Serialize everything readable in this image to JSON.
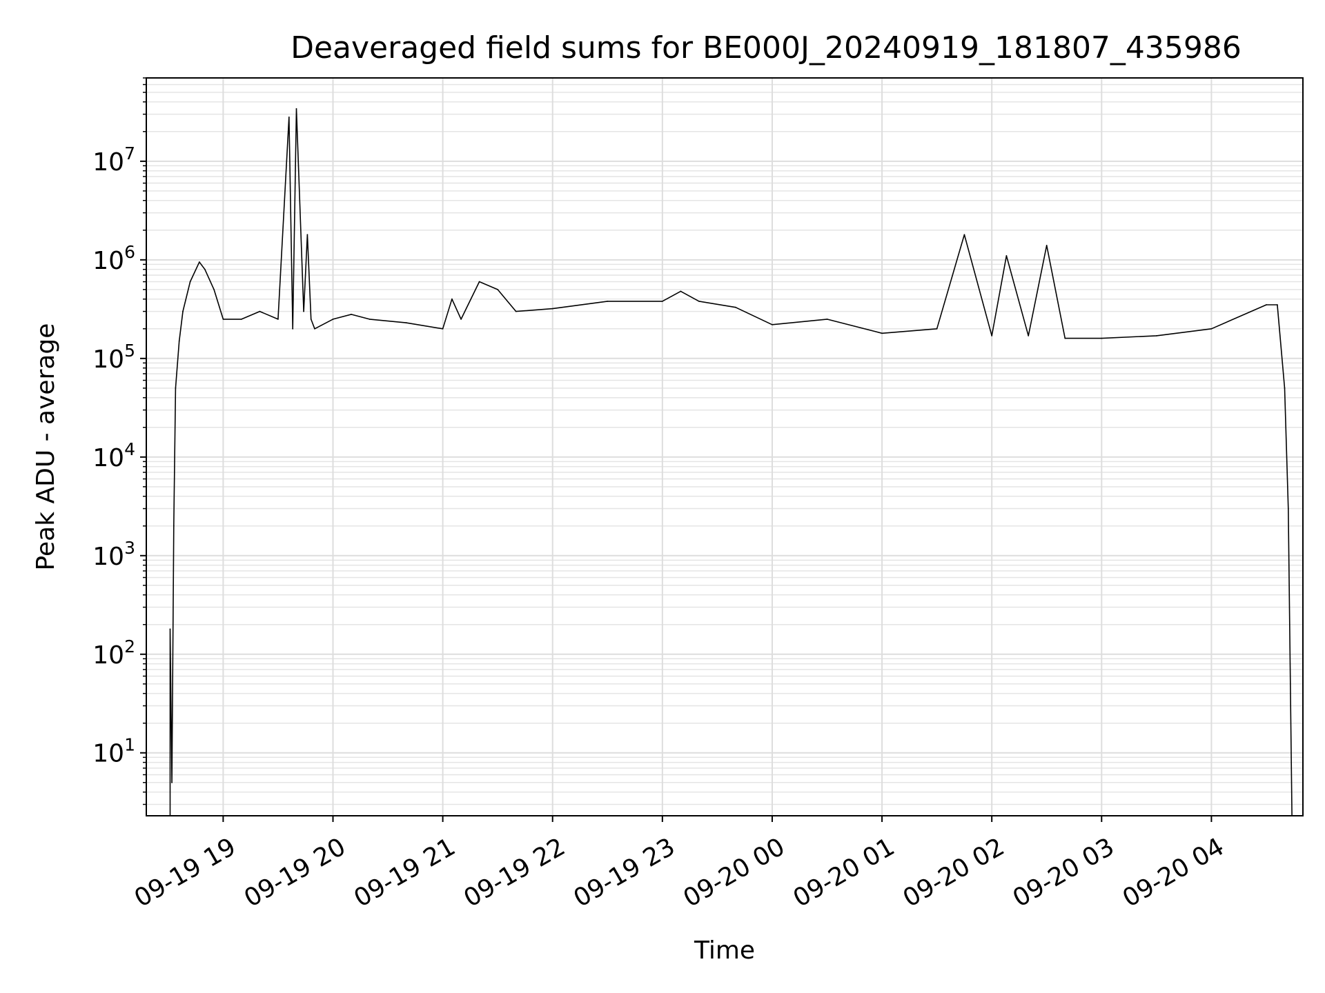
{
  "chart_data": {
    "type": "line",
    "title": "Deaveraged field sums for BE000J_20240919_181807_435986",
    "xlabel": "Time",
    "ylabel": "Peak ADU - average",
    "y_scale": "log",
    "ylim": [
      2.3,
      70000000
    ],
    "xlim": [
      "2024-09-19 18:18:00",
      "2024-09-20 04:50:00"
    ],
    "x_tick_labels": [
      "09-19 19",
      "09-19 20",
      "09-19 21",
      "09-19 22",
      "09-19 23",
      "09-20 00",
      "09-20 01",
      "09-20 02",
      "09-20 03",
      "09-20 04"
    ],
    "x_ticks": [
      "2024-09-19 19:00",
      "2024-09-19 20:00",
      "2024-09-19 21:00",
      "2024-09-19 22:00",
      "2024-09-19 23:00",
      "2024-09-20 00:00",
      "2024-09-20 01:00",
      "2024-09-20 02:00",
      "2024-09-20 03:00",
      "2024-09-20 04:00"
    ],
    "y_ticks": [
      10,
      100,
      1000,
      10000,
      100000,
      1000000,
      10000000
    ],
    "grid": true,
    "line_color": "#000000",
    "series": [
      {
        "x": [
          "2024-09-19 18:31",
          "2024-09-19 18:31",
          "2024-09-19 18:32",
          "2024-09-19 18:33",
          "2024-09-19 18:34",
          "2024-09-19 18:36",
          "2024-09-19 18:38",
          "2024-09-19 18:42",
          "2024-09-19 18:47",
          "2024-09-19 18:50",
          "2024-09-19 18:55",
          "2024-09-19 19:00",
          "2024-09-19 19:10",
          "2024-09-19 19:20",
          "2024-09-19 19:30",
          "2024-09-19 19:36",
          "2024-09-19 19:38",
          "2024-09-19 19:40",
          "2024-09-19 19:44",
          "2024-09-19 19:46",
          "2024-09-19 19:48",
          "2024-09-19 19:50",
          "2024-09-19 20:00",
          "2024-09-19 20:10",
          "2024-09-19 20:20",
          "2024-09-19 20:40",
          "2024-09-19 21:00",
          "2024-09-19 21:05",
          "2024-09-19 21:10",
          "2024-09-19 21:20",
          "2024-09-19 21:30",
          "2024-09-19 21:40",
          "2024-09-19 22:00",
          "2024-09-19 22:30",
          "2024-09-19 23:00",
          "2024-09-19 23:10",
          "2024-09-19 23:20",
          "2024-09-19 23:40",
          "2024-09-20 00:00",
          "2024-09-20 00:30",
          "2024-09-20 01:00",
          "2024-09-20 01:30",
          "2024-09-20 01:45",
          "2024-09-20 02:00",
          "2024-09-20 02:08",
          "2024-09-20 02:20",
          "2024-09-20 02:30",
          "2024-09-20 02:40",
          "2024-09-20 03:00",
          "2024-09-20 03:30",
          "2024-09-20 04:00",
          "2024-09-20 04:30",
          "2024-09-20 04:36",
          "2024-09-20 04:40",
          "2024-09-20 04:42",
          "2024-09-20 04:44"
        ],
        "y": [
          2.3,
          180,
          5,
          2000,
          50000,
          150000,
          300000,
          600000,
          950000,
          800000,
          500000,
          250000,
          250000,
          300000,
          250000,
          28000000,
          200000,
          34000000,
          300000,
          1800000,
          250000,
          200000,
          250000,
          280000,
          250000,
          230000,
          200000,
          400000,
          250000,
          600000,
          500000,
          300000,
          320000,
          380000,
          380000,
          480000,
          380000,
          330000,
          220000,
          250000,
          180000,
          200000,
          1800000,
          170000,
          1100000,
          170000,
          1400000,
          160000,
          160000,
          170000,
          200000,
          350000,
          350000,
          50000,
          3000,
          2.3
        ]
      }
    ]
  }
}
